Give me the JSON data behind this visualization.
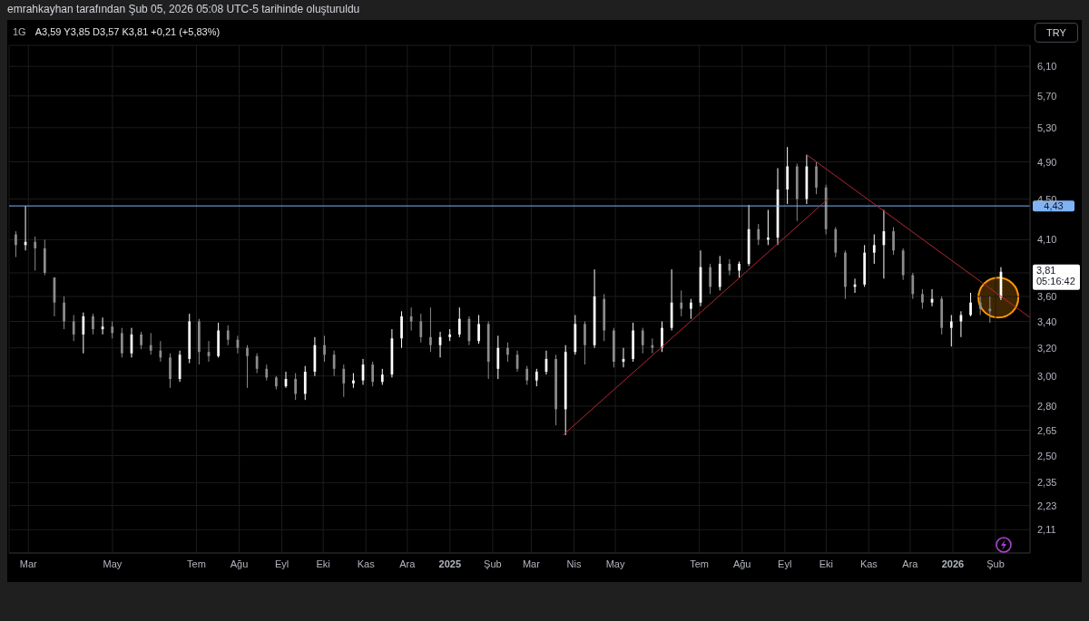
{
  "chart_data": {
    "type": "candlestick",
    "title": "1G",
    "subtitle": "A3,59 Y3,85 D3,57 K3,81 +0,21 (+5,83%)",
    "annotations": [
      "emrahkayhan tarafından Şub 05, 2026 05:08 UTC-5 tarihinde oluşturuldu",
      "TRY",
      "3,81",
      "05:16:42"
    ],
    "x": [
      "2024-02-21",
      "2024-02-28",
      "2024-03-06",
      "2024-03-13",
      "2024-03-20",
      "2024-03-27",
      "2024-04-03",
      "2024-04-10",
      "2024-04-17",
      "2024-04-24",
      "2024-05-01",
      "2024-05-08",
      "2024-05-15",
      "2024-05-22",
      "2024-05-29",
      "2024-06-05",
      "2024-06-12",
      "2024-06-19",
      "2024-06-26",
      "2024-07-03",
      "2024-07-10",
      "2024-07-17",
      "2024-07-24",
      "2024-07-31",
      "2024-08-07",
      "2024-08-14",
      "2024-08-21",
      "2024-08-28",
      "2024-09-04",
      "2024-09-11",
      "2024-09-18",
      "2024-09-25",
      "2024-10-02",
      "2024-10-09",
      "2024-10-16",
      "2024-10-23",
      "2024-10-30",
      "2024-11-06",
      "2024-11-13",
      "2024-11-20",
      "2024-11-27",
      "2024-12-04",
      "2024-12-11",
      "2024-12-18",
      "2024-12-25",
      "2025-01-01",
      "2025-01-08",
      "2025-01-15",
      "2025-01-22",
      "2025-01-29",
      "2025-02-05",
      "2025-02-12",
      "2025-02-19",
      "2025-02-26",
      "2025-03-05",
      "2025-03-12",
      "2025-03-19",
      "2025-03-26",
      "2025-04-02",
      "2025-04-09",
      "2025-04-16",
      "2025-04-23",
      "2025-04-30",
      "2025-05-07",
      "2025-05-14",
      "2025-05-21",
      "2025-05-28",
      "2025-06-04",
      "2025-06-11",
      "2025-06-18",
      "2025-06-25",
      "2025-07-02",
      "2025-07-09",
      "2025-07-16",
      "2025-07-23",
      "2025-07-30",
      "2025-08-06",
      "2025-08-13",
      "2025-08-20",
      "2025-08-27",
      "2025-09-03",
      "2025-09-10",
      "2025-09-17",
      "2025-09-24",
      "2025-10-01",
      "2025-10-08",
      "2025-10-15",
      "2025-10-22",
      "2025-10-29",
      "2025-11-05",
      "2025-11-12",
      "2025-11-19",
      "2025-11-26",
      "2025-12-03",
      "2025-12-10",
      "2025-12-17",
      "2025-12-24",
      "2025-12-31",
      "2026-01-07",
      "2026-01-14",
      "2026-01-21",
      "2026-01-28",
      "2026-02-05"
    ],
    "ohlc": [
      [
        4.15,
        4.18,
        3.94,
        4.05
      ],
      [
        4.05,
        4.43,
        4.0,
        4.08
      ],
      [
        4.08,
        4.13,
        3.82,
        4.02
      ],
      [
        4.02,
        4.1,
        3.78,
        3.8
      ],
      [
        3.76,
        3.76,
        3.44,
        3.55
      ],
      [
        3.55,
        3.6,
        3.34,
        3.4
      ],
      [
        3.4,
        3.45,
        3.25,
        3.3
      ],
      [
        3.3,
        3.47,
        3.16,
        3.44
      ],
      [
        3.44,
        3.46,
        3.3,
        3.34
      ],
      [
        3.34,
        3.43,
        3.3,
        3.36
      ],
      [
        3.36,
        3.4,
        3.27,
        3.31
      ],
      [
        3.31,
        3.35,
        3.13,
        3.16
      ],
      [
        3.16,
        3.35,
        3.13,
        3.3
      ],
      [
        3.3,
        3.32,
        3.19,
        3.22
      ],
      [
        3.22,
        3.31,
        3.15,
        3.18
      ],
      [
        3.18,
        3.25,
        3.1,
        3.13
      ],
      [
        3.13,
        3.16,
        2.92,
        2.98
      ],
      [
        2.98,
        3.18,
        2.96,
        3.15
      ],
      [
        3.12,
        3.46,
        3.09,
        3.4
      ],
      [
        3.4,
        3.42,
        3.08,
        3.17
      ],
      [
        3.17,
        3.25,
        3.1,
        3.14
      ],
      [
        3.14,
        3.39,
        3.13,
        3.33
      ],
      [
        3.33,
        3.37,
        3.22,
        3.26
      ],
      [
        3.26,
        3.29,
        3.16,
        3.2
      ],
      [
        3.2,
        3.22,
        2.92,
        3.14
      ],
      [
        3.14,
        3.16,
        3.02,
        3.05
      ],
      [
        3.05,
        3.08,
        2.97,
        2.99
      ],
      [
        2.99,
        3.0,
        2.91,
        2.93
      ],
      [
        2.93,
        3.03,
        2.92,
        2.98
      ],
      [
        2.98,
        3.02,
        2.84,
        2.88
      ],
      [
        2.88,
        3.07,
        2.84,
        3.03
      ],
      [
        3.03,
        3.28,
        3.0,
        3.22
      ],
      [
        3.22,
        3.29,
        3.1,
        3.15
      ],
      [
        3.15,
        3.18,
        3.0,
        3.05
      ],
      [
        3.05,
        3.08,
        2.86,
        2.95
      ],
      [
        2.95,
        3.02,
        2.92,
        2.97
      ],
      [
        2.97,
        3.12,
        2.94,
        3.08
      ],
      [
        3.08,
        3.1,
        2.93,
        2.96
      ],
      [
        2.96,
        3.05,
        2.94,
        3.01
      ],
      [
        3.01,
        3.34,
        2.99,
        3.27
      ],
      [
        3.27,
        3.48,
        3.2,
        3.44
      ],
      [
        3.44,
        3.51,
        3.33,
        3.4
      ],
      [
        3.4,
        3.46,
        3.24,
        3.28
      ],
      [
        3.28,
        3.51,
        3.17,
        3.22
      ],
      [
        3.22,
        3.32,
        3.13,
        3.28
      ],
      [
        3.28,
        3.34,
        3.25,
        3.3
      ],
      [
        3.3,
        3.51,
        3.28,
        3.42
      ],
      [
        3.42,
        3.44,
        3.22,
        3.25
      ],
      [
        3.25,
        3.45,
        3.23,
        3.38
      ],
      [
        3.38,
        3.4,
        2.98,
        3.1
      ],
      [
        3.05,
        3.29,
        2.98,
        3.2
      ],
      [
        3.2,
        3.24,
        3.1,
        3.15
      ],
      [
        3.15,
        3.18,
        3.03,
        3.05
      ],
      [
        3.05,
        3.07,
        2.94,
        2.97
      ],
      [
        2.97,
        3.05,
        2.93,
        3.03
      ],
      [
        3.03,
        3.18,
        3.01,
        3.12
      ],
      [
        3.12,
        3.15,
        2.68,
        2.78
      ],
      [
        2.78,
        3.22,
        2.62,
        3.17
      ],
      [
        3.17,
        3.45,
        3.15,
        3.38
      ],
      [
        3.38,
        3.4,
        3.08,
        3.22
      ],
      [
        3.22,
        3.83,
        3.2,
        3.6
      ],
      [
        3.58,
        3.62,
        3.25,
        3.33
      ],
      [
        3.33,
        3.35,
        3.06,
        3.1
      ],
      [
        3.1,
        3.2,
        3.06,
        3.12
      ],
      [
        3.12,
        3.39,
        3.1,
        3.33
      ],
      [
        3.33,
        3.35,
        3.16,
        3.22
      ],
      [
        3.22,
        3.27,
        3.16,
        3.2
      ],
      [
        3.2,
        3.4,
        3.17,
        3.35
      ],
      [
        3.35,
        3.83,
        3.33,
        3.55
      ],
      [
        3.55,
        3.65,
        3.44,
        3.5
      ],
      [
        3.5,
        3.58,
        3.42,
        3.55
      ],
      [
        3.55,
        4.0,
        3.52,
        3.85
      ],
      [
        3.85,
        3.88,
        3.62,
        3.68
      ],
      [
        3.68,
        3.95,
        3.65,
        3.88
      ],
      [
        3.88,
        3.92,
        3.78,
        3.82
      ],
      [
        3.82,
        3.9,
        3.76,
        3.88
      ],
      [
        3.88,
        4.44,
        3.86,
        4.2
      ],
      [
        4.2,
        4.25,
        4.05,
        4.1
      ],
      [
        4.1,
        4.39,
        4.05,
        4.12
      ],
      [
        4.12,
        4.83,
        4.05,
        4.6
      ],
      [
        4.6,
        5.07,
        4.45,
        4.85
      ],
      [
        4.85,
        4.88,
        4.28,
        4.5
      ],
      [
        4.5,
        4.98,
        4.45,
        4.85
      ],
      [
        4.85,
        4.9,
        4.55,
        4.62
      ],
      [
        4.62,
        4.65,
        4.15,
        4.2
      ],
      [
        4.2,
        4.22,
        3.94,
        3.98
      ],
      [
        3.98,
        4.0,
        3.58,
        3.68
      ],
      [
        3.68,
        3.75,
        3.63,
        3.7
      ],
      [
        3.7,
        4.05,
        3.68,
        3.98
      ],
      [
        3.98,
        4.15,
        3.88,
        4.05
      ],
      [
        4.05,
        4.39,
        3.75,
        4.18
      ],
      [
        4.18,
        4.22,
        3.96,
        4.0
      ],
      [
        4.0,
        4.02,
        3.74,
        3.78
      ],
      [
        3.78,
        3.8,
        3.58,
        3.62
      ],
      [
        3.62,
        3.66,
        3.5,
        3.55
      ],
      [
        3.55,
        3.66,
        3.52,
        3.58
      ],
      [
        3.58,
        3.6,
        3.3,
        3.35
      ],
      [
        3.35,
        3.45,
        3.21,
        3.4
      ],
      [
        3.4,
        3.48,
        3.28,
        3.45
      ],
      [
        3.45,
        3.63,
        3.44,
        3.55
      ],
      [
        3.55,
        3.6,
        3.45,
        3.5
      ],
      [
        3.5,
        3.6,
        3.39,
        3.48
      ],
      [
        3.59,
        3.85,
        3.57,
        3.81
      ]
    ],
    "colors": [
      "#8c8c8c",
      "#ffffff",
      "#8c8c8c",
      "#8c8c8c",
      "#8c8c8c",
      "#8c8c8c",
      "#8c8c8c",
      "#ffffff",
      "#8c8c8c",
      "#ffffff",
      "#8c8c8c",
      "#8c8c8c",
      "#ffffff",
      "#8c8c8c",
      "#8c8c8c",
      "#8c8c8c",
      "#8c8c8c",
      "#ffffff",
      "#ffffff",
      "#8c8c8c",
      "#8c8c8c",
      "#ffffff",
      "#8c8c8c",
      "#8c8c8c",
      "#8c8c8c",
      "#8c8c8c",
      "#8c8c8c",
      "#8c8c8c",
      "#ffffff",
      "#8c8c8c",
      "#ffffff",
      "#ffffff",
      "#8c8c8c",
      "#8c8c8c",
      "#8c8c8c",
      "#ffffff",
      "#ffffff",
      "#8c8c8c",
      "#ffffff",
      "#ffffff",
      "#ffffff",
      "#8c8c8c",
      "#8c8c8c",
      "#8c8c8c",
      "#ffffff",
      "#ffffff",
      "#ffffff",
      "#8c8c8c",
      "#ffffff",
      "#8c8c8c",
      "#ffffff",
      "#8c8c8c",
      "#8c8c8c",
      "#8c8c8c",
      "#ffffff",
      "#ffffff",
      "#8c8c8c",
      "#ffffff",
      "#ffffff",
      "#8c8c8c",
      "#ffffff",
      "#8c8c8c",
      "#8c8c8c",
      "#ffffff",
      "#ffffff",
      "#8c8c8c",
      "#8c8c8c",
      "#ffffff",
      "#ffffff",
      "#8c8c8c",
      "#ffffff",
      "#ffffff",
      "#8c8c8c",
      "#ffffff",
      "#8c8c8c",
      "#ffffff",
      "#ffffff",
      "#8c8c8c",
      "#ffffff",
      "#ffffff",
      "#ffffff",
      "#8c8c8c",
      "#ffffff",
      "#8c8c8c",
      "#8c8c8c",
      "#8c8c8c",
      "#8c8c8c",
      "#ffffff",
      "#ffffff",
      "#ffffff",
      "#ffffff",
      "#8c8c8c",
      "#8c8c8c",
      "#8c8c8c",
      "#8c8c8c",
      "#ffffff",
      "#8c8c8c",
      "#ffffff",
      "#ffffff",
      "#ffffff",
      "#8c8c8c",
      "#8c8c8c",
      "#ffffff"
    ],
    "series": [
      {
        "type": "line",
        "color": "#b22833",
        "x": [
          "2025-03-24",
          "2025-10-03"
        ],
        "values": [
          2.62,
          4.51
        ]
      },
      {
        "type": "line",
        "color": "#b22833",
        "x": [
          "2025-09-17",
          "2026-02-26"
        ],
        "values": [
          4.98,
          3.43
        ]
      }
    ],
    "ref_lines": [
      {
        "axis": "y",
        "value": 4.43,
        "label": "4,43",
        "color": "#7fb3f5"
      }
    ],
    "xlim": [
      "2024-02-16",
      "2026-02-26"
    ],
    "xticks": [
      {
        "value": "2024-03-01",
        "label": "Mar"
      },
      {
        "value": "2024-05-01",
        "label": "May"
      },
      {
        "value": "2024-07-01",
        "label": "Tem"
      },
      {
        "value": "2024-08-01",
        "label": "Ağu"
      },
      {
        "value": "2024-09-01",
        "label": "Eyl"
      },
      {
        "value": "2024-10-01",
        "label": "Eki"
      },
      {
        "value": "2024-11-01",
        "label": "Kas"
      },
      {
        "value": "2024-12-01",
        "label": "Ara"
      },
      {
        "value": "2025-01-01",
        "label": "2025"
      },
      {
        "value": "2025-02-01",
        "label": "Şub"
      },
      {
        "value": "2025-03-01",
        "label": "Mar"
      },
      {
        "value": "2025-04-01",
        "label": "Nis"
      },
      {
        "value": "2025-05-01",
        "label": "May"
      },
      {
        "value": "2025-07-01",
        "label": "Tem"
      },
      {
        "value": "2025-08-01",
        "label": "Ağu"
      },
      {
        "value": "2025-09-01",
        "label": "Eyl"
      },
      {
        "value": "2025-10-01",
        "label": "Eki"
      },
      {
        "value": "2025-11-01",
        "label": "Kas"
      },
      {
        "value": "2025-12-01",
        "label": "Ara"
      },
      {
        "value": "2026-01-01",
        "label": "2026"
      },
      {
        "value": "2026-02-01",
        "label": "Şub"
      }
    ],
    "ylim": [
      2.0,
      6.4
    ],
    "yticks": [
      {
        "value": 6.1,
        "label": "6,10"
      },
      {
        "value": 5.7,
        "label": "5,70"
      },
      {
        "value": 5.3,
        "label": "5,30"
      },
      {
        "value": 4.9,
        "label": "4,90"
      },
      {
        "value": 4.5,
        "label": "4,50"
      },
      {
        "value": 4.1,
        "label": "4,10"
      },
      {
        "value": 3.8,
        "label": null
      },
      {
        "value": 3.6,
        "label": "3,60"
      },
      {
        "value": 3.4,
        "label": "3,40"
      },
      {
        "value": 3.2,
        "label": "3,20"
      },
      {
        "value": 3.0,
        "label": "3,00"
      },
      {
        "value": 2.8,
        "label": "2,80"
      },
      {
        "value": 2.65,
        "label": "2,65"
      },
      {
        "value": 2.5,
        "label": "2,50"
      },
      {
        "value": 2.35,
        "label": "2,35"
      },
      {
        "value": 2.23,
        "label": "2,23"
      },
      {
        "value": 2.11,
        "label": "2,11"
      }
    ],
    "log": true,
    "grid": true
  }
}
